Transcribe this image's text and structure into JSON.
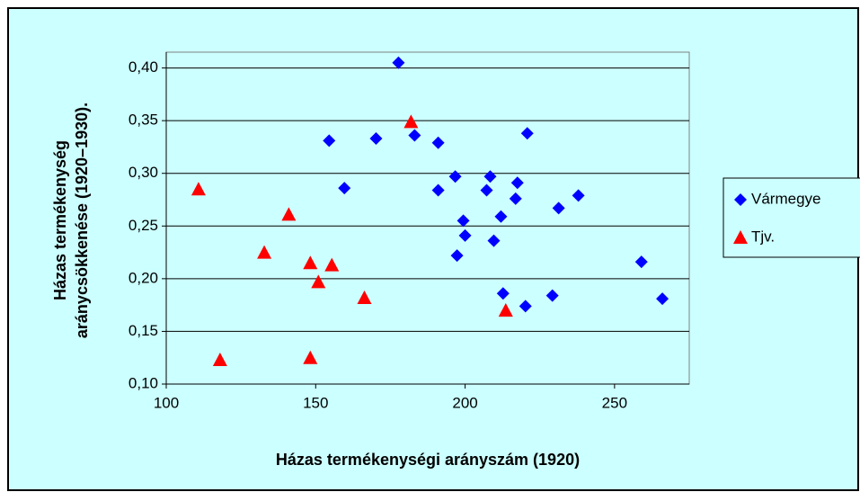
{
  "chart_data": {
    "type": "scatter",
    "x_label": "Házas termékenységi arányszám (1920)",
    "y_label": [
      "Házas termékenység",
      "aránycsökkenése (1920–1930)."
    ],
    "xlim": [
      100,
      275
    ],
    "xticks": [
      100,
      150,
      200,
      250
    ],
    "ylim": [
      0.1,
      0.415
    ],
    "yticks": [
      {
        "value": 0.1,
        "label": "0,10"
      },
      {
        "value": 0.15,
        "label": "0,15"
      },
      {
        "value": 0.2,
        "label": "0,20"
      },
      {
        "value": 0.25,
        "label": "0,25"
      },
      {
        "value": 0.3,
        "label": "0,30"
      },
      {
        "value": 0.35,
        "label": "0,35"
      },
      {
        "value": 0.4,
        "label": "0,40"
      }
    ],
    "grid": true,
    "legend": "right",
    "series": [
      {
        "name": "Vármegye",
        "color": "#0000ff",
        "marker": "diamond",
        "x": [
          177.7,
          154.5,
          170.2,
          183.1,
          191,
          220.8,
          159.6,
          191,
          196.7,
          208.4,
          207.2,
          217.5,
          216.9,
          199.4,
          200,
          212,
          231.3,
          237.9,
          209.6,
          197.3,
          212.7,
          220.2,
          229.2,
          259,
          266
        ],
        "values": [
          0.405,
          0.331,
          0.333,
          0.336,
          0.329,
          0.338,
          0.286,
          0.284,
          0.297,
          0.297,
          0.284,
          0.291,
          0.276,
          0.255,
          0.241,
          0.259,
          0.267,
          0.279,
          0.236,
          0.222,
          0.186,
          0.174,
          0.184,
          0.216,
          0.181
        ]
      },
      {
        "name": "Tjv.",
        "color": "#ff0000",
        "marker": "triangle",
        "x": [
          110.8,
          118,
          132.8,
          141,
          148.2,
          148.2,
          150.9,
          155.4,
          166.3,
          181.9,
          213.6
        ],
        "values": [
          0.285,
          0.123,
          0.225,
          0.261,
          0.215,
          0.125,
          0.197,
          0.213,
          0.182,
          0.349,
          0.17
        ]
      }
    ]
  }
}
